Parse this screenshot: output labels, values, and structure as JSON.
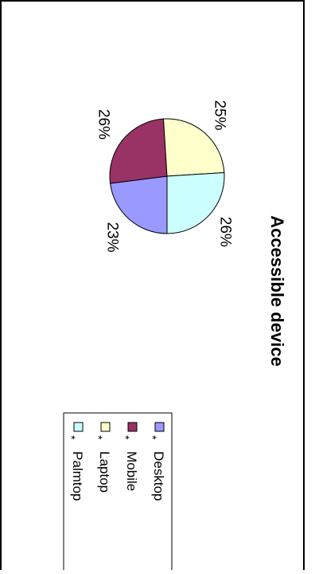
{
  "chart_data": {
    "type": "pie",
    "title": "Accessible device",
    "categories": [
      "Desktop",
      "Mobile",
      "Laptop",
      "Palmtop"
    ],
    "values": [
      23,
      26,
      25,
      26
    ],
    "data_labels": [
      "23%",
      "26%",
      "25%",
      "26%"
    ],
    "legend_markers": [
      "*",
      "*",
      "*",
      "*"
    ],
    "colors": [
      "#9999ff",
      "#993366",
      "#ffffcc",
      "#ccffff"
    ],
    "legend_placement": "right",
    "start_angle_deg": 0,
    "direction": "clockwise",
    "orientation": "rotated 90 degrees clockwise"
  }
}
